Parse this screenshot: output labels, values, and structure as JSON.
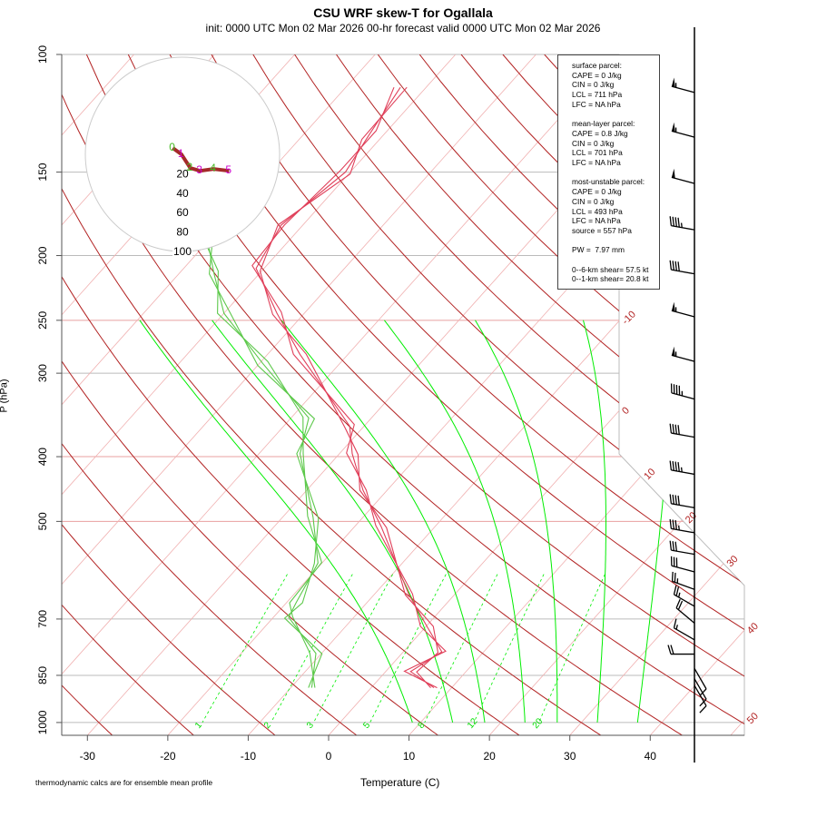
{
  "header": {
    "title": "CSU WRF skew-T for Ogallala",
    "subtitle": "init: 0000 UTC Mon 02 Mar 2026    00-hr forecast valid 0000 UTC Mon 02 Mar 2026"
  },
  "info_box": [
    "surface parcel:",
    "CAPE = 0 J/kg",
    "CIN = 0 J/kg",
    "LCL = 711 hPa",
    "LFC = NA hPa",
    "",
    "mean-layer parcel:",
    "CAPE = 0.8 J/kg",
    "CIN = 0 J/kg",
    "LCL = 701 hPa",
    "LFC = NA hPa",
    "",
    "most-unstable parcel:",
    "CAPE = 0 J/kg",
    "CIN = 0 J/kg",
    "LCL = 493 hPa",
    "LFC = NA hPa",
    "source = 557 hPa",
    "",
    "PW =  7.97 mm",
    "",
    "0--6-km shear= 57.5 kt",
    "0--1-km shear= 20.8 kt"
  ],
  "footnote": "thermodynamic calcs are for ensemble mean profile",
  "colors": {
    "temp": "#e0405a",
    "dewpoint": "#5cc84a",
    "dry_adiabat": "#b22222",
    "moist_adiabat": "#00ee00",
    "isotherm": "#f0b0b0"
  },
  "chart_data": {
    "type": "line",
    "title": "CSU WRF skew-T for Ogallala",
    "xlabel": "Temperature (C)",
    "ylabel": "P (hPa)",
    "xlim": [
      -33,
      45
    ],
    "ylim": [
      1045,
      100
    ],
    "x_ticks": [
      -30,
      -20,
      -10,
      0,
      10,
      20,
      30,
      40
    ],
    "y_ticks": [
      100,
      150,
      200,
      250,
      300,
      400,
      500,
      700,
      850,
      1000
    ],
    "isotherm_labels": [
      -10,
      0,
      10,
      20,
      30,
      40,
      50
    ],
    "mixing_ratio_labels": [
      1,
      2,
      3,
      5,
      8,
      12,
      20
    ],
    "moist_adiabat_start_T1000": [
      9,
      14,
      18,
      23,
      27,
      32,
      37
    ],
    "series": [
      {
        "name": "temperature",
        "p": [
          887,
          839,
          784,
          718,
          643,
          509,
          449,
          396,
          360,
          281,
          244,
          209,
          180,
          150,
          132,
          112
        ],
        "T": [
          7.8,
          3.1,
          4.8,
          0.1,
          -5.7,
          -16.7,
          -23,
          -28.4,
          -31.8,
          -46,
          -53.4,
          -61,
          -62.7,
          -60.6,
          -61.8,
          -63.2
        ]
      },
      {
        "name": "dewpoint",
        "p": [
          887,
          788,
          696,
          662,
          577,
          493,
          396,
          350,
          290,
          244,
          212,
          192
        ],
        "T": [
          -7.4,
          -10.7,
          -18.1,
          -18.8,
          -20.5,
          -26.2,
          -34.9,
          -37.8,
          -49.6,
          -60,
          -65.8,
          -69.7
        ]
      }
    ],
    "wind_barbs": {
      "p": [
        114,
        133,
        156,
        183,
        213,
        247,
        288,
        328,
        374,
        425,
        477,
        520,
        560,
        595,
        632,
        670,
        710,
        752,
        790,
        830,
        860,
        880
      ],
      "speed_kt": [
        55,
        55,
        50,
        45,
        40,
        55,
        55,
        45,
        40,
        45,
        40,
        35,
        30,
        30,
        25,
        25,
        20,
        15,
        20,
        10,
        10,
        10
      ],
      "dir_deg": [
        285,
        285,
        285,
        280,
        280,
        285,
        285,
        285,
        280,
        280,
        280,
        280,
        280,
        285,
        290,
        300,
        310,
        300,
        270,
        150,
        150,
        150
      ]
    },
    "hodograph": {
      "rings_kt": [
        20,
        40,
        60,
        80,
        100
      ],
      "u": [
        -10,
        -1,
        8,
        18,
        32,
        48
      ],
      "v": [
        6.5,
        0,
        -14,
        -17,
        -15,
        -17
      ],
      "labels": [
        "0",
        "1",
        "2",
        "3",
        "4",
        "5"
      ]
    }
  }
}
